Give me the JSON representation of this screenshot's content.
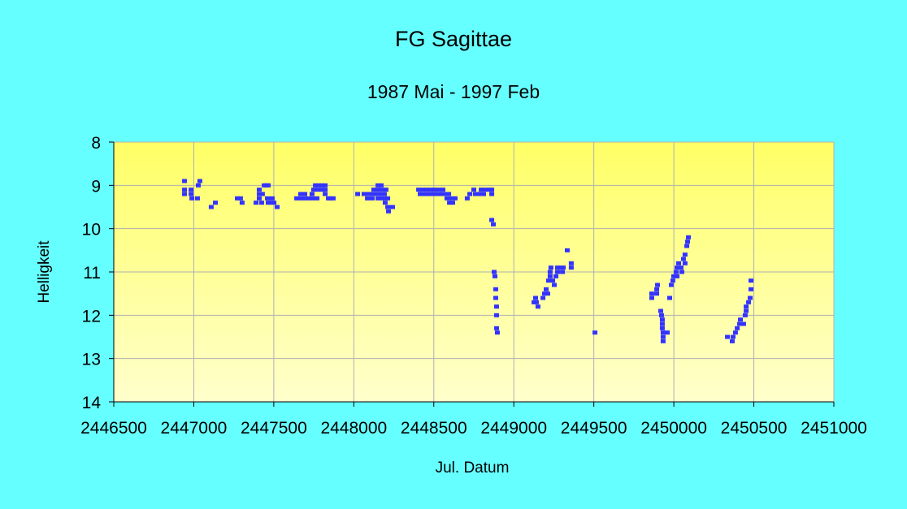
{
  "chart_data": {
    "type": "scatter",
    "title": "FG Sagittae",
    "subtitle": "1987 Mai - 1997 Feb",
    "xlabel": "Jul. Datum",
    "ylabel": "Helligkeit",
    "xlim": [
      2446500,
      2451000
    ],
    "ylim": [
      8,
      14
    ],
    "y_inverted": true,
    "xticks": [
      2446500,
      2447000,
      2447500,
      2448000,
      2448500,
      2449000,
      2449500,
      2450000,
      2450500,
      2451000
    ],
    "yticks": [
      8,
      9,
      10,
      11,
      12,
      13,
      14
    ],
    "grid": true,
    "legend": "none",
    "colors": {
      "background": "#66ffff",
      "plot_top": "#ffff66",
      "plot_bottom": "#ffffcc",
      "marker": "#3333ff",
      "grid": "#b0b0b0"
    },
    "points": [
      [
        2446942,
        8.9
      ],
      [
        2446942,
        9.1
      ],
      [
        2446942,
        9.2
      ],
      [
        2446983,
        9.1
      ],
      [
        2446983,
        9.2
      ],
      [
        2446988,
        9.3
      ],
      [
        2447023,
        9.3
      ],
      [
        2447028,
        9.0
      ],
      [
        2447038,
        8.9
      ],
      [
        2447109,
        9.5
      ],
      [
        2447135,
        9.4
      ],
      [
        2447272,
        9.3
      ],
      [
        2447292,
        9.3
      ],
      [
        2447302,
        9.4
      ],
      [
        2447389,
        9.4
      ],
      [
        2447409,
        9.1
      ],
      [
        2447409,
        9.2
      ],
      [
        2447409,
        9.3
      ],
      [
        2447424,
        9.4
      ],
      [
        2447429,
        9.2
      ],
      [
        2447440,
        9.0
      ],
      [
        2447455,
        9.0
      ],
      [
        2447465,
        9.0
      ],
      [
        2447460,
        9.3
      ],
      [
        2447465,
        9.4
      ],
      [
        2447480,
        9.4
      ],
      [
        2447490,
        9.3
      ],
      [
        2447501,
        9.4
      ],
      [
        2447521,
        9.5
      ],
      [
        2447643,
        9.3
      ],
      [
        2447668,
        9.3
      ],
      [
        2447694,
        9.3
      ],
      [
        2447719,
        9.3
      ],
      [
        2447744,
        9.3
      ],
      [
        2447770,
        9.3
      ],
      [
        2447668,
        9.2
      ],
      [
        2447694,
        9.2
      ],
      [
        2447739,
        9.2
      ],
      [
        2447760,
        9.0
      ],
      [
        2447780,
        9.0
      ],
      [
        2447800,
        9.0
      ],
      [
        2447821,
        9.0
      ],
      [
        2447749,
        9.1
      ],
      [
        2447775,
        9.1
      ],
      [
        2447800,
        9.1
      ],
      [
        2447821,
        9.1
      ],
      [
        2447821,
        9.2
      ],
      [
        2447841,
        9.3
      ],
      [
        2447856,
        9.3
      ],
      [
        2447871,
        9.3
      ],
      [
        2448024,
        9.2
      ],
      [
        2448064,
        9.2
      ],
      [
        2448090,
        9.2
      ],
      [
        2448115,
        9.2
      ],
      [
        2448141,
        9.2
      ],
      [
        2448166,
        9.2
      ],
      [
        2448191,
        9.2
      ],
      [
        2448085,
        9.3
      ],
      [
        2448115,
        9.3
      ],
      [
        2448151,
        9.3
      ],
      [
        2448125,
        9.1
      ],
      [
        2448151,
        9.1
      ],
      [
        2448176,
        9.1
      ],
      [
        2448201,
        9.1
      ],
      [
        2448151,
        9.0
      ],
      [
        2448171,
        9.0
      ],
      [
        2448176,
        9.3
      ],
      [
        2448196,
        9.3
      ],
      [
        2448212,
        9.3
      ],
      [
        2448196,
        9.4
      ],
      [
        2448212,
        9.5
      ],
      [
        2448217,
        9.6
      ],
      [
        2448227,
        9.5
      ],
      [
        2448242,
        9.5
      ],
      [
        2448405,
        9.1
      ],
      [
        2448430,
        9.1
      ],
      [
        2448455,
        9.1
      ],
      [
        2448481,
        9.1
      ],
      [
        2448506,
        9.1
      ],
      [
        2448532,
        9.1
      ],
      [
        2448557,
        9.1
      ],
      [
        2448415,
        9.2
      ],
      [
        2448440,
        9.2
      ],
      [
        2448466,
        9.2
      ],
      [
        2448491,
        9.2
      ],
      [
        2448516,
        9.2
      ],
      [
        2448542,
        9.2
      ],
      [
        2448567,
        9.2
      ],
      [
        2448582,
        9.3
      ],
      [
        2448608,
        9.3
      ],
      [
        2448633,
        9.3
      ],
      [
        2448593,
        9.2
      ],
      [
        2448598,
        9.4
      ],
      [
        2448618,
        9.4
      ],
      [
        2448709,
        9.3
      ],
      [
        2448725,
        9.2
      ],
      [
        2448750,
        9.1
      ],
      [
        2448760,
        9.2
      ],
      [
        2448786,
        9.2
      ],
      [
        2448811,
        9.2
      ],
      [
        2448796,
        9.1
      ],
      [
        2448821,
        9.1
      ],
      [
        2448847,
        9.1
      ],
      [
        2448862,
        9.1
      ],
      [
        2448862,
        9.2
      ],
      [
        2448862,
        9.8
      ],
      [
        2448872,
        9.9
      ],
      [
        2448877,
        11.0
      ],
      [
        2448882,
        11.1
      ],
      [
        2448887,
        11.4
      ],
      [
        2448887,
        11.6
      ],
      [
        2448892,
        11.8
      ],
      [
        2448892,
        12.0
      ],
      [
        2448892,
        12.3
      ],
      [
        2448897,
        12.4
      ],
      [
        2449126,
        11.7
      ],
      [
        2449141,
        11.7
      ],
      [
        2449151,
        11.8
      ],
      [
        2449136,
        11.6
      ],
      [
        2449182,
        11.6
      ],
      [
        2449192,
        11.5
      ],
      [
        2449202,
        11.4
      ],
      [
        2449212,
        11.5
      ],
      [
        2449217,
        11.2
      ],
      [
        2449227,
        11.1
      ],
      [
        2449227,
        11.0
      ],
      [
        2449232,
        10.9
      ],
      [
        2449243,
        11.2
      ],
      [
        2449253,
        11.3
      ],
      [
        2449263,
        11.1
      ],
      [
        2449273,
        10.9
      ],
      [
        2449273,
        11.0
      ],
      [
        2449293,
        10.9
      ],
      [
        2449304,
        11.0
      ],
      [
        2449309,
        10.9
      ],
      [
        2449334,
        10.5
      ],
      [
        2449359,
        10.8
      ],
      [
        2449359,
        10.9
      ],
      [
        2449507,
        12.4
      ],
      [
        2449862,
        11.5
      ],
      [
        2449862,
        11.6
      ],
      [
        2449893,
        11.5
      ],
      [
        2449898,
        11.3
      ],
      [
        2449893,
        11.4
      ],
      [
        2449918,
        11.9
      ],
      [
        2449923,
        12.0
      ],
      [
        2449928,
        12.1
      ],
      [
        2449928,
        12.2
      ],
      [
        2449928,
        12.3
      ],
      [
        2449933,
        12.4
      ],
      [
        2449933,
        12.5
      ],
      [
        2449933,
        12.6
      ],
      [
        2449959,
        12.4
      ],
      [
        2449974,
        11.6
      ],
      [
        2449984,
        11.3
      ],
      [
        2449994,
        11.2
      ],
      [
        2449999,
        11.1
      ],
      [
        2450020,
        11.1
      ],
      [
        2450015,
        11.0
      ],
      [
        2450050,
        11.0
      ],
      [
        2450020,
        10.9
      ],
      [
        2450045,
        10.9
      ],
      [
        2450030,
        10.8
      ],
      [
        2450070,
        10.8
      ],
      [
        2450060,
        10.7
      ],
      [
        2450070,
        10.6
      ],
      [
        2450081,
        10.4
      ],
      [
        2450086,
        10.3
      ],
      [
        2450091,
        10.2
      ],
      [
        2450482,
        11.2
      ],
      [
        2450482,
        11.4
      ],
      [
        2450477,
        11.6
      ],
      [
        2450467,
        11.7
      ],
      [
        2450452,
        11.8
      ],
      [
        2450452,
        11.9
      ],
      [
        2450446,
        12.0
      ],
      [
        2450416,
        12.1
      ],
      [
        2450436,
        12.2
      ],
      [
        2450411,
        12.2
      ],
      [
        2450396,
        12.3
      ],
      [
        2450385,
        12.4
      ],
      [
        2450370,
        12.5
      ],
      [
        2450335,
        12.5
      ],
      [
        2450365,
        12.6
      ]
    ]
  }
}
